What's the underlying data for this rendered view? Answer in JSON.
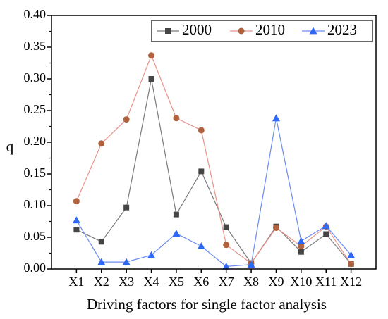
{
  "chart_data": {
    "type": "line",
    "title": "",
    "xlabel": "Driving factors for single factor analysis",
    "ylabel": "q",
    "categories": [
      "X1",
      "X2",
      "X3",
      "X4",
      "X5",
      "X6",
      "X7",
      "X8",
      "X9",
      "X10",
      "X11",
      "X12"
    ],
    "ylim": [
      0,
      0.4
    ],
    "yticks": [
      "0.00",
      "0.05",
      "0.10",
      "0.15",
      "0.20",
      "0.25",
      "0.30",
      "0.35",
      "0.40"
    ],
    "grid": false,
    "legend_position": "top-right",
    "series": [
      {
        "name": "2000",
        "marker": "square",
        "line_color": "#7a7a7a",
        "marker_color": "#454545",
        "values": [
          0.062,
          0.043,
          0.097,
          0.3,
          0.086,
          0.154,
          0.066,
          0.009,
          0.067,
          0.027,
          0.055,
          0.008
        ]
      },
      {
        "name": "2010",
        "marker": "circle",
        "line_color": "#e8928a",
        "marker_color": "#b0623e",
        "values": [
          0.107,
          0.198,
          0.236,
          0.337,
          0.238,
          0.219,
          0.038,
          0.009,
          0.065,
          0.036,
          0.067,
          0.008
        ]
      },
      {
        "name": "2023",
        "marker": "triangle",
        "line_color": "#6b8cf0",
        "marker_color": "#2f68f5",
        "values": [
          0.077,
          0.011,
          0.011,
          0.022,
          0.056,
          0.036,
          0.004,
          0.007,
          0.238,
          0.044,
          0.068,
          0.022
        ]
      }
    ]
  }
}
